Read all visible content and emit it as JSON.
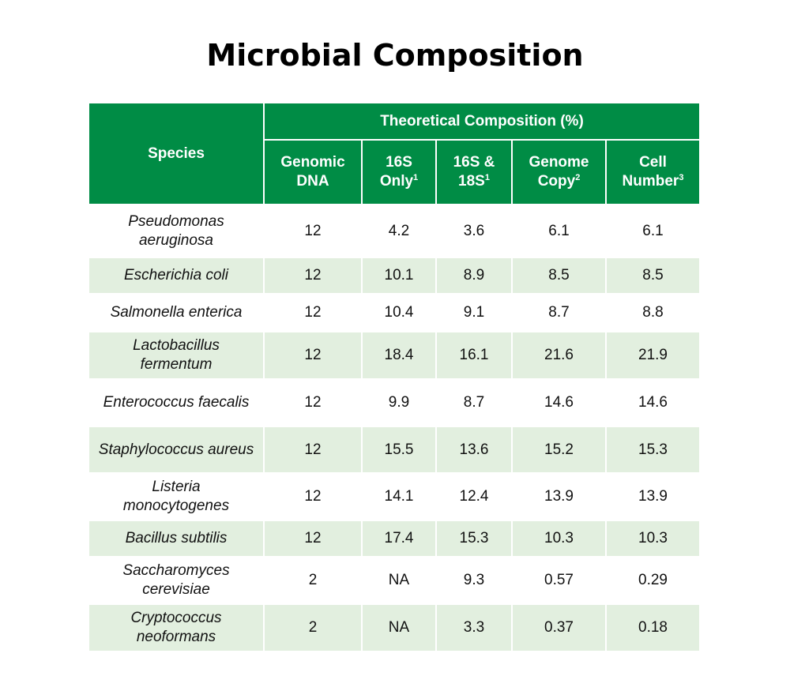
{
  "title": "Microbial Composition",
  "table": {
    "species_header": "Species",
    "group_header": "Theoretical Composition (%)",
    "columns": [
      {
        "text": "Genomic DNA"
      },
      {
        "text": "16S Only",
        "sup": "1"
      },
      {
        "text": "16S & 18S",
        "sup": "1"
      },
      {
        "text": "Genome Copy",
        "sup": "2"
      },
      {
        "text": "Cell Number",
        "sup": "3"
      }
    ],
    "rows": [
      [
        "Pseudomonas aeruginosa",
        "12",
        "4.2",
        "3.6",
        "6.1",
        "6.1"
      ],
      [
        "Escherichia coli",
        "12",
        "10.1",
        "8.9",
        "8.5",
        "8.5"
      ],
      [
        "Salmonella enterica",
        "12",
        "10.4",
        "9.1",
        "8.7",
        "8.8"
      ],
      [
        "Lactobacillus fermentum",
        "12",
        "18.4",
        "16.1",
        "21.6",
        "21.9"
      ],
      [
        "Enterococcus faecalis",
        "12",
        "9.9",
        "8.7",
        "14.6",
        "14.6"
      ],
      [
        "Staphylococcus aureus",
        "12",
        "15.5",
        "13.6",
        "15.2",
        "15.3"
      ],
      [
        "Listeria monocytogenes",
        "12",
        "14.1",
        "12.4",
        "13.9",
        "13.9"
      ],
      [
        "Bacillus subtilis",
        "12",
        "17.4",
        "15.3",
        "10.3",
        "10.3"
      ],
      [
        "Saccharomyces cerevisiae",
        "2",
        "NA",
        "9.3",
        "0.57",
        "0.29"
      ],
      [
        "Cryptococcus neoformans",
        "2",
        "NA",
        "3.3",
        "0.37",
        "0.18"
      ]
    ]
  }
}
